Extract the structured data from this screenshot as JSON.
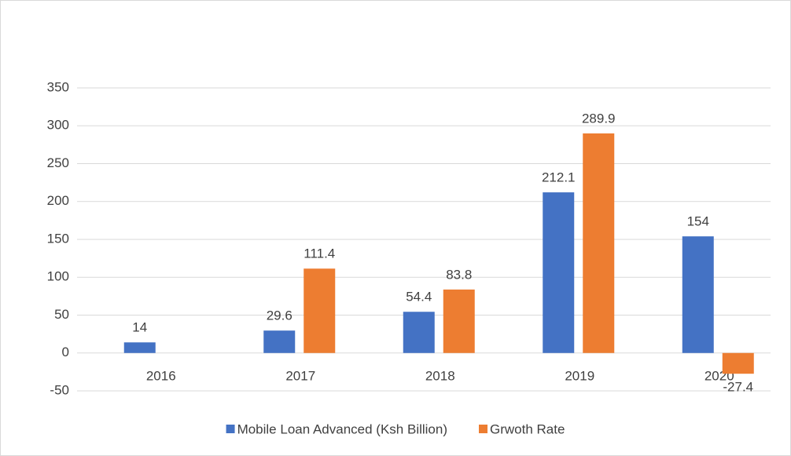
{
  "chart_data": {
    "type": "bar",
    "categories": [
      "2016",
      "2017",
      "2018",
      "2019",
      "2020"
    ],
    "series": [
      {
        "name": "Mobile Loan Advanced (Ksh Billion)",
        "color": "#4472c4",
        "values": [
          14,
          29.6,
          54.4,
          212.1,
          154
        ]
      },
      {
        "name": "Grwoth Rate",
        "color": "#ed7d31",
        "values": [
          null,
          111.4,
          83.8,
          289.9,
          -27.4
        ]
      }
    ],
    "ylim": [
      -50,
      350
    ],
    "yticks": [
      -50,
      0,
      50,
      100,
      150,
      200,
      250,
      300,
      350
    ],
    "grid": true,
    "legend": "bottom"
  }
}
